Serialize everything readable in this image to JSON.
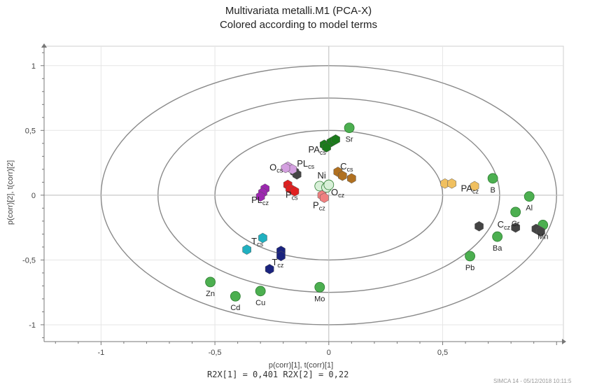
{
  "chart_data": {
    "type": "scatter",
    "title": "Multivariata metalli.M1 (PCA-X)",
    "subtitle": "Colored according to model terms",
    "xlabel": "p(corr)[1], t(corr)[1]",
    "ylabel": "p(corr)[2], t(corr)[2]",
    "xlim": [
      -1.25,
      1.03
    ],
    "ylim": [
      -1.13,
      1.15
    ],
    "x_ticks": [
      -1,
      -0.5,
      0,
      0.5
    ],
    "x_tick_labels": [
      "-1",
      "-0,5",
      "0",
      "0,5"
    ],
    "y_ticks": [
      1,
      0.5,
      0,
      -0.5,
      -1
    ],
    "y_tick_labels": [
      "1",
      "0,5",
      "0",
      "-0,5",
      "-1"
    ],
    "grid": true,
    "ellipses": [
      {
        "rx": 1.0,
        "ry": 1.0
      },
      {
        "rx": 0.75,
        "ry": 0.75
      },
      {
        "rx": 0.5,
        "ry": 0.5
      }
    ],
    "series": [
      {
        "color": "#4caf50",
        "marker": "circle",
        "points": [
          {
            "x": 0.09,
            "y": 0.52,
            "label": "Sr"
          },
          {
            "x": 0.72,
            "y": 0.13,
            "label": "B"
          },
          {
            "x": 0.88,
            "y": -0.01,
            "label": "Al"
          },
          {
            "x": 0.82,
            "y": -0.13,
            "label": "Cr"
          },
          {
            "x": 0.94,
            "y": -0.23,
            "label": "Mn"
          },
          {
            "x": 0.74,
            "y": -0.32,
            "label": "Ba"
          },
          {
            "x": 0.62,
            "y": -0.47,
            "label": "Pb"
          },
          {
            "x": -0.04,
            "y": -0.71,
            "label": "Mo"
          },
          {
            "x": -0.3,
            "y": -0.74,
            "label": "Cu"
          },
          {
            "x": -0.41,
            "y": -0.78,
            "label": "Cd"
          },
          {
            "x": -0.52,
            "y": -0.67,
            "label": "Zn"
          }
        ]
      },
      {
        "color": "#444444",
        "marker": "hex",
        "points": [
          {
            "x": 0.66,
            "y": -0.24
          },
          {
            "x": 0.82,
            "y": -0.25
          },
          {
            "x": 0.91,
            "y": -0.26
          },
          {
            "x": 0.93,
            "y": -0.28
          },
          {
            "x": -0.15,
            "y": 0.18
          },
          {
            "x": -0.14,
            "y": 0.16
          }
        ]
      },
      {
        "color": "#1b7a1b",
        "marker": "hex",
        "points": [
          {
            "x": -0.02,
            "y": 0.39
          },
          {
            "x": 0.01,
            "y": 0.41
          },
          {
            "x": 0.03,
            "y": 0.43
          },
          {
            "x": -0.01,
            "y": 0.37
          }
        ]
      },
      {
        "color": "#d4a0e0",
        "marker": "hex",
        "points": [
          {
            "x": -0.18,
            "y": 0.22
          },
          {
            "x": -0.16,
            "y": 0.2
          },
          {
            "x": -0.19,
            "y": 0.21
          }
        ]
      },
      {
        "color": "#b07020",
        "marker": "hex",
        "points": [
          {
            "x": 0.04,
            "y": 0.18
          },
          {
            "x": 0.06,
            "y": 0.15
          },
          {
            "x": 0.1,
            "y": 0.13
          }
        ]
      },
      {
        "color": "#f0c060",
        "marker": "hex",
        "points": [
          {
            "x": 0.51,
            "y": 0.09
          },
          {
            "x": 0.54,
            "y": 0.09
          },
          {
            "x": 0.64,
            "y": 0.07
          }
        ]
      },
      {
        "color": "#9c27b0",
        "marker": "hex",
        "points": [
          {
            "x": -0.28,
            "y": 0.05
          },
          {
            "x": -0.29,
            "y": 0.02
          },
          {
            "x": -0.3,
            "y": -0.01
          }
        ]
      },
      {
        "color": "#e02020",
        "marker": "hex",
        "points": [
          {
            "x": -0.18,
            "y": 0.08
          },
          {
            "x": -0.17,
            "y": 0.05
          },
          {
            "x": -0.15,
            "y": 0.03
          }
        ]
      },
      {
        "color": "#d8f0d8",
        "marker": "circle",
        "points": [
          {
            "x": -0.04,
            "y": 0.07
          },
          {
            "x": -0.01,
            "y": 0.06
          },
          {
            "x": 0.0,
            "y": 0.08
          }
        ]
      },
      {
        "color": "#f08080",
        "marker": "hex",
        "points": [
          {
            "x": -0.03,
            "y": 0.0
          },
          {
            "x": -0.02,
            "y": -0.02
          }
        ]
      },
      {
        "color": "#20b0c0",
        "marker": "hex",
        "points": [
          {
            "x": -0.29,
            "y": -0.33
          },
          {
            "x": -0.36,
            "y": -0.42
          }
        ]
      },
      {
        "color": "#1a237e",
        "marker": "hex",
        "points": [
          {
            "x": -0.21,
            "y": -0.43
          },
          {
            "x": -0.21,
            "y": -0.47
          },
          {
            "x": -0.26,
            "y": -0.57
          }
        ]
      }
    ],
    "term_labels": [
      {
        "x": -0.09,
        "y": 0.33,
        "text": "PA",
        "sub": "cs"
      },
      {
        "x": -0.26,
        "y": 0.19,
        "text": "O",
        "sub": "cs"
      },
      {
        "x": -0.14,
        "y": 0.22,
        "text": "PL",
        "sub": "cs"
      },
      {
        "x": 0.05,
        "y": 0.2,
        "text": "C",
        "sub": "cs"
      },
      {
        "x": -0.05,
        "y": 0.13,
        "text": "Ni",
        "sub": ""
      },
      {
        "x": 0.01,
        "y": 0.0,
        "text": "O",
        "sub": "cz"
      },
      {
        "x": 0.58,
        "y": 0.03,
        "text": "PA",
        "sub": "cz"
      },
      {
        "x": -0.34,
        "y": -0.06,
        "text": "PL",
        "sub": "cz"
      },
      {
        "x": -0.19,
        "y": -0.02,
        "text": "P",
        "sub": "cs"
      },
      {
        "x": -0.07,
        "y": -0.1,
        "text": "P",
        "sub": "cz"
      },
      {
        "x": 0.74,
        "y": -0.25,
        "text": "C",
        "sub": "cz"
      },
      {
        "x": -0.34,
        "y": -0.38,
        "text": "T",
        "sub": "cs"
      },
      {
        "x": -0.25,
        "y": -0.54,
        "text": "T",
        "sub": "cz"
      }
    ]
  },
  "footer": {
    "text": "R2X[1] = 0,401  R2X[2] = 0,22"
  },
  "watermark": "SIMCA 14 - 05/12/2018 10:11:5"
}
